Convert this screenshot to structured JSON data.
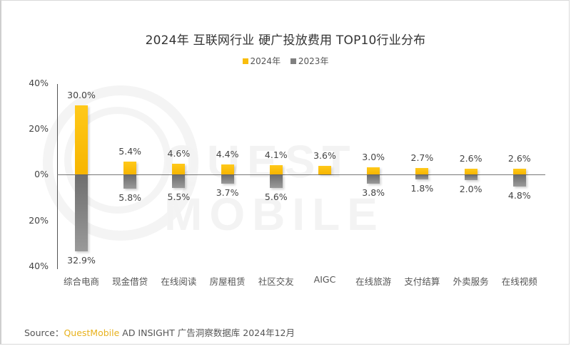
{
  "title": "2024年 互联网行业 硬广投放费用 TOP10行业分布",
  "legend": [
    {
      "label": "2024年",
      "color": "#f9bd0c"
    },
    {
      "label": "2023年",
      "color": "#808080"
    }
  ],
  "watermark": "QUEST MOBILE",
  "y_axis": {
    "ticks": [
      "40%",
      "20%",
      "0%",
      "20%",
      "40%"
    ]
  },
  "source": {
    "prefix": "Source：",
    "brand": "QuestMobile",
    "rest": " AD INSIGHT 广告洞察数据库 2024年12月"
  },
  "chart_data": {
    "type": "bar",
    "title": "2024年 互联网行业 硬广投放费用 TOP10行业分布",
    "xlabel": "",
    "ylabel": "",
    "ylim": [
      -40,
      40
    ],
    "y_ticks": [
      "40%",
      "20%",
      "0%",
      "20%",
      "40%"
    ],
    "legend_position": "top",
    "grid": false,
    "layout_note": "2024 values plotted upward, 2023 values plotted downward (butterfly/diverging bars)",
    "categories": [
      "综合电商",
      "现金借贷",
      "在线阅读",
      "房屋租赁",
      "社区交友",
      "AIGC",
      "在线旅游",
      "支付结算",
      "外卖服务",
      "在线视频"
    ],
    "series": [
      {
        "name": "2024年",
        "color": "#f9bd0c",
        "values": [
          30.0,
          5.4,
          4.6,
          4.4,
          4.1,
          3.6,
          3.0,
          2.7,
          2.6,
          2.6
        ],
        "labels": [
          "30.0%",
          "5.4%",
          "4.6%",
          "4.4%",
          "4.1%",
          "3.6%",
          "3.0%",
          "2.7%",
          "2.6%",
          "2.6%"
        ]
      },
      {
        "name": "2023年",
        "color": "#808080",
        "values": [
          32.9,
          5.8,
          5.5,
          3.7,
          5.6,
          null,
          3.8,
          1.8,
          2.0,
          4.8
        ],
        "labels": [
          "32.9%",
          "5.8%",
          "5.5%",
          "3.7%",
          "5.6%",
          "",
          "3.8%",
          "1.8%",
          "2.0%",
          "4.8%"
        ]
      }
    ]
  }
}
